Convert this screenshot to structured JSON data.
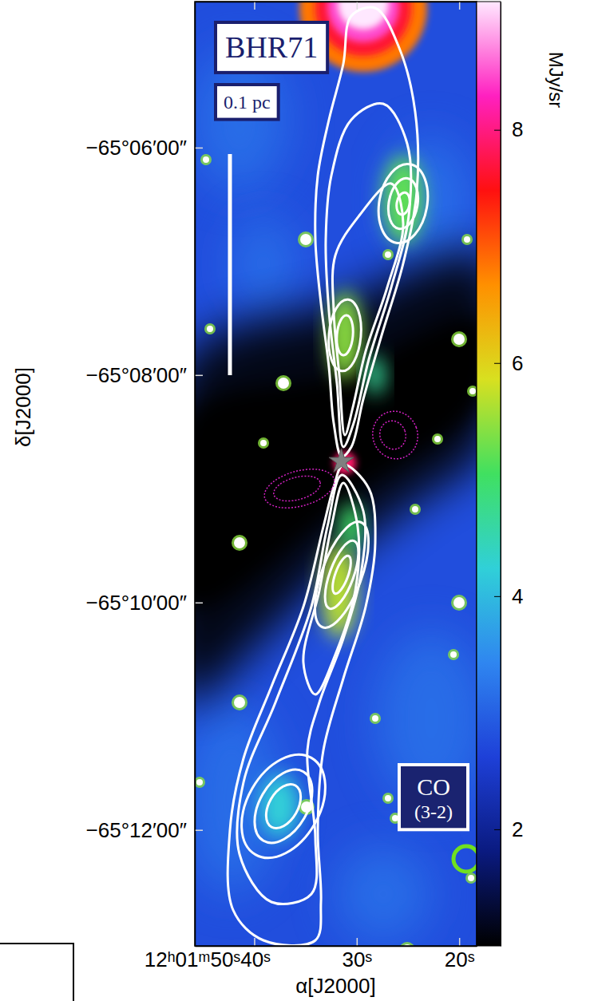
{
  "chart_data": {
    "type": "image",
    "title": "BHR71",
    "annotations": [
      "0.1 pc",
      "CO",
      "(3-2)"
    ],
    "x_label": "α[J2000]",
    "y_label": "δ[J2000]",
    "xlim": [
      45.8,
      18.3
    ],
    "xticks": [
      {
        "value": 40,
        "label": "12ʰ01ᵐ50ˢ40ˢ"
      },
      {
        "value": 30,
        "label": "30ˢ"
      },
      {
        "value": 20,
        "label": "20ˢ"
      }
    ],
    "ylim": [
      -65.217,
      -65.0786
    ],
    "yticks": [
      {
        "value": -65.1,
        "label": "−65°06′00″"
      },
      {
        "value": -65.13333,
        "label": "−65°08′00″"
      },
      {
        "value": -65.16667,
        "label": "−65°10′00″"
      },
      {
        "value": -65.2,
        "label": "−65°12′00″"
      }
    ],
    "x": [
      31.5
    ],
    "y": [
      -65.146
    ],
    "marker": "star",
    "colorbar": {
      "label": "MJy/sr",
      "range": [
        1.0,
        9.1
      ],
      "ticks": [
        2,
        4,
        6,
        8
      ]
    },
    "grid": false
  }
}
